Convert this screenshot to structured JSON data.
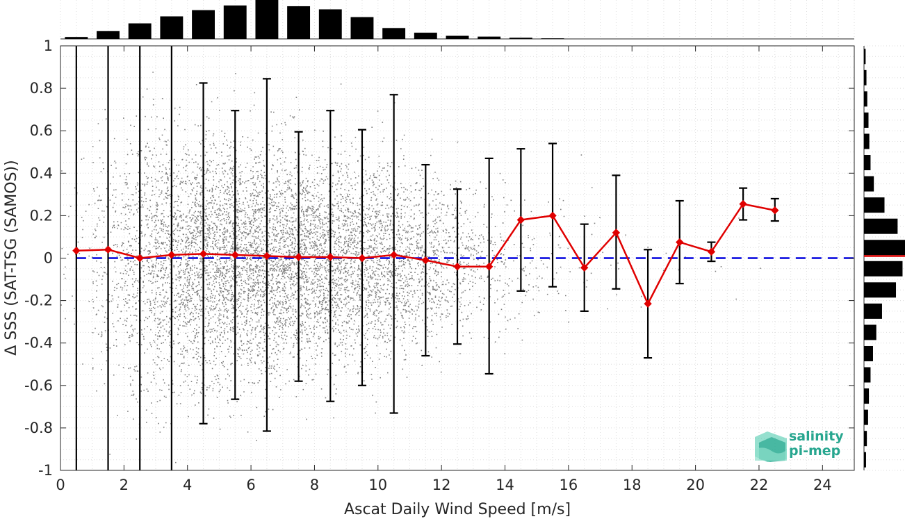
{
  "chart_data": {
    "type": "scatter",
    "xlabel": "Ascat Daily Wind Speed [m/s]",
    "ylabel": "Δ SSS (SAT-TSG (SAMOS))",
    "xlim": [
      0,
      25
    ],
    "ylim": [
      -1,
      1
    ],
    "xticks": [
      "0",
      "2",
      "4",
      "6",
      "8",
      "10",
      "12",
      "14",
      "16",
      "18",
      "20",
      "22",
      "24"
    ],
    "yticks": [
      "-1",
      "-0.8",
      "-0.6",
      "-0.4",
      "-0.2",
      "0",
      "0.2",
      "0.4",
      "0.6",
      "0.8",
      "1"
    ],
    "grid": true,
    "reference_line": {
      "y": 0,
      "color": "#0000dd",
      "style": "dashed"
    },
    "series": [
      {
        "style": "line-diamond",
        "color": "#e00000",
        "x": [
          0.5,
          1.5,
          2.5,
          3.5,
          4.5,
          5.5,
          6.5,
          7.5,
          8.5,
          9.5,
          10.5,
          11.5,
          12.5,
          13.5,
          14.5,
          15.5,
          16.5,
          17.5,
          18.5,
          19.5,
          20.5,
          21.5,
          22.5
        ],
        "y": [
          0.035,
          0.04,
          0.0,
          0.015,
          0.02,
          0.015,
          0.01,
          0.005,
          0.005,
          0.0,
          0.015,
          -0.01,
          -0.04,
          -0.04,
          0.18,
          0.2,
          -0.045,
          0.12,
          -0.215,
          0.075,
          0.03,
          0.255,
          0.225
        ]
      }
    ],
    "error_bars": {
      "lower": [
        -1.0,
        -1.0,
        -1.0,
        -1.0,
        -0.78,
        -0.665,
        -0.815,
        -0.58,
        -0.675,
        -0.6,
        -0.73,
        -0.46,
        -0.405,
        -0.545,
        -0.155,
        -0.135,
        -0.25,
        -0.145,
        -0.47,
        -0.12,
        -0.015,
        0.18,
        0.175
      ],
      "upper": [
        1.0,
        1.0,
        1.0,
        1.0,
        0.825,
        0.695,
        0.845,
        0.595,
        0.695,
        0.605,
        0.77,
        0.44,
        0.325,
        0.47,
        0.515,
        0.54,
        0.16,
        0.39,
        0.04,
        0.27,
        0.075,
        0.33,
        0.28
      ]
    },
    "scatter_color": "#808080",
    "histogram_top": {
      "bins": [
        0.5,
        1.5,
        2.5,
        3.5,
        4.5,
        5.5,
        6.5,
        7.5,
        8.5,
        9.5,
        10.5,
        11.5,
        12.5,
        13.5,
        14.5,
        15.5
      ],
      "relative": [
        0.05,
        0.2,
        0.4,
        0.58,
        0.74,
        0.86,
        1.0,
        0.84,
        0.76,
        0.56,
        0.28,
        0.16,
        0.08,
        0.06,
        0.03,
        0.015
      ]
    },
    "histogram_right": {
      "bins": [
        -0.95,
        -0.85,
        -0.75,
        -0.65,
        -0.55,
        -0.45,
        -0.35,
        -0.25,
        -0.15,
        -0.05,
        0.05,
        0.15,
        0.25,
        0.35,
        0.45,
        0.55,
        0.65,
        0.75,
        0.85,
        0.95
      ],
      "relative": [
        0.05,
        0.07,
        0.1,
        0.12,
        0.16,
        0.22,
        0.3,
        0.44,
        0.78,
        0.94,
        1.0,
        0.82,
        0.5,
        0.24,
        0.16,
        0.13,
        0.11,
        0.08,
        0.06,
        0.04
      ],
      "mean_line": 0.01,
      "mean_color": "#e00000"
    }
  },
  "logo": {
    "line1": "salinity",
    "line2": "pi-mep",
    "color": "#27a68f"
  }
}
